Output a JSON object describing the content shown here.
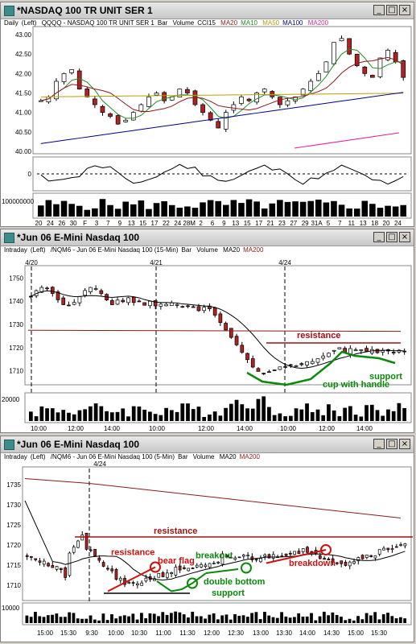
{
  "colors": {
    "up": "#ffffff",
    "down": "#b22222",
    "ma20": "#8b1a1a",
    "ma10": "#228b22",
    "ma50": "#b8a000",
    "ma100": "#00008b",
    "ma200": "#e0209a",
    "green": "#0a8a0a",
    "red": "#cc1010",
    "resist": "#a01010"
  },
  "windows": [
    {
      "title": "*NASDAQ 100 TR UNIT SER 1",
      "header": {
        "period": "Daily",
        "axis": "(Left)",
        "symbol": "QQQQ - NASDAQ 100 TR UNIT SER 1",
        "type": "Bar",
        "volume": "Volume",
        "cci": "CCI15",
        "ma20": "MA20",
        "ma10": "MA10",
        "ma50": "MA50",
        "ma100": "MA100",
        "ma200": "MA200"
      },
      "y_ticks": [
        "43.00",
        "42.50",
        "42.00",
        "41.50",
        "41.00",
        "40.50",
        "40.00"
      ],
      "cci_tick": "0",
      "vol_tick": "100000000",
      "x_ticks": [
        "20",
        "24",
        "26",
        "30",
        "F",
        "3",
        "7",
        "9",
        "13",
        "15",
        "17",
        "22",
        "24",
        "28M",
        "2",
        "6",
        "9",
        "13",
        "15",
        "17",
        "21",
        "23",
        "27",
        "29",
        "31A",
        "5",
        "7",
        "11",
        "13",
        "18",
        "20",
        "24"
      ],
      "chart_data": {
        "type": "candlestick",
        "ylim": [
          40.0,
          43.0
        ],
        "closes": [
          41.3,
          41.4,
          41.8,
          42.0,
          42.1,
          41.6,
          41.4,
          41.2,
          41.0,
          40.9,
          40.7,
          40.8,
          41.0,
          41.2,
          41.4,
          41.5,
          41.3,
          41.4,
          41.6,
          41.5,
          41.2,
          41.0,
          40.8,
          40.6,
          41.0,
          41.2,
          41.4,
          41.3,
          41.5,
          41.6,
          41.4,
          41.2,
          41.3,
          41.4,
          41.6,
          41.8,
          42.0,
          42.3,
          42.8,
          42.9,
          42.5,
          42.2,
          42.0,
          41.9,
          42.4,
          42.6,
          42.3,
          41.9
        ]
      }
    },
    {
      "title": "*Jun 06  E-Mini Nasdaq 100",
      "header": {
        "period": "Intraday",
        "axis": "(Left)",
        "symbol": "/NQM6 - Jun 06  E-Mini Nasdaq 100 (15-Min)",
        "type": "Bar",
        "volume": "Volume",
        "ma20": "MA20",
        "ma200": "MA200"
      },
      "date_labels": [
        "4/20",
        "4/21",
        "4/24"
      ],
      "y_ticks": [
        "1750",
        "1740",
        "1730",
        "1720",
        "1710"
      ],
      "vol_tick": "20000",
      "x_ticks": [
        "10:00",
        "12:00",
        "14:00",
        "10:00",
        "12:00",
        "14:00",
        "10:00",
        "12:00",
        "14:00"
      ],
      "annotations": {
        "resistance": "resistance",
        "cup": "cup with handle",
        "support": "support"
      },
      "chart_data": {
        "type": "candlestick",
        "ylim": [
          1705,
          1755
        ],
        "resistance": 1722,
        "support": 1716
      }
    },
    {
      "title": "*Jun 06  E-Mini Nasdaq 100",
      "header": {
        "period": "Intraday",
        "axis": "(Left)",
        "symbol": "/NQM6 - Jun 06  E-Mini Nasdaq 100 (5-Min)",
        "type": "Bar",
        "volume": "Volume",
        "ma20": "MA20",
        "ma200": "MA200"
      },
      "date_labels": [
        "4/24"
      ],
      "y_ticks": [
        "1735",
        "1730",
        "1725",
        "1720",
        "1715",
        "1710"
      ],
      "vol_tick": "10000",
      "x_ticks": [
        "15:00",
        "15:30",
        "9:30",
        "10:00",
        "10:30",
        "11:00",
        "11:30",
        "12:00",
        "12:30",
        "13:00",
        "13:30",
        "14:00",
        "14:30",
        "15:00",
        "15:30"
      ],
      "annotations": {
        "resistance_top": "resistance",
        "resistance": "resistance",
        "bear_flag": "bear flag",
        "breakout": "breakout",
        "double_bottom": "double bottom",
        "support": "support",
        "breakdown": "breakdown"
      },
      "chart_data": {
        "type": "candlestick",
        "ylim": [
          1707,
          1738
        ],
        "resistance": 1722,
        "support": 1708
      }
    }
  ]
}
